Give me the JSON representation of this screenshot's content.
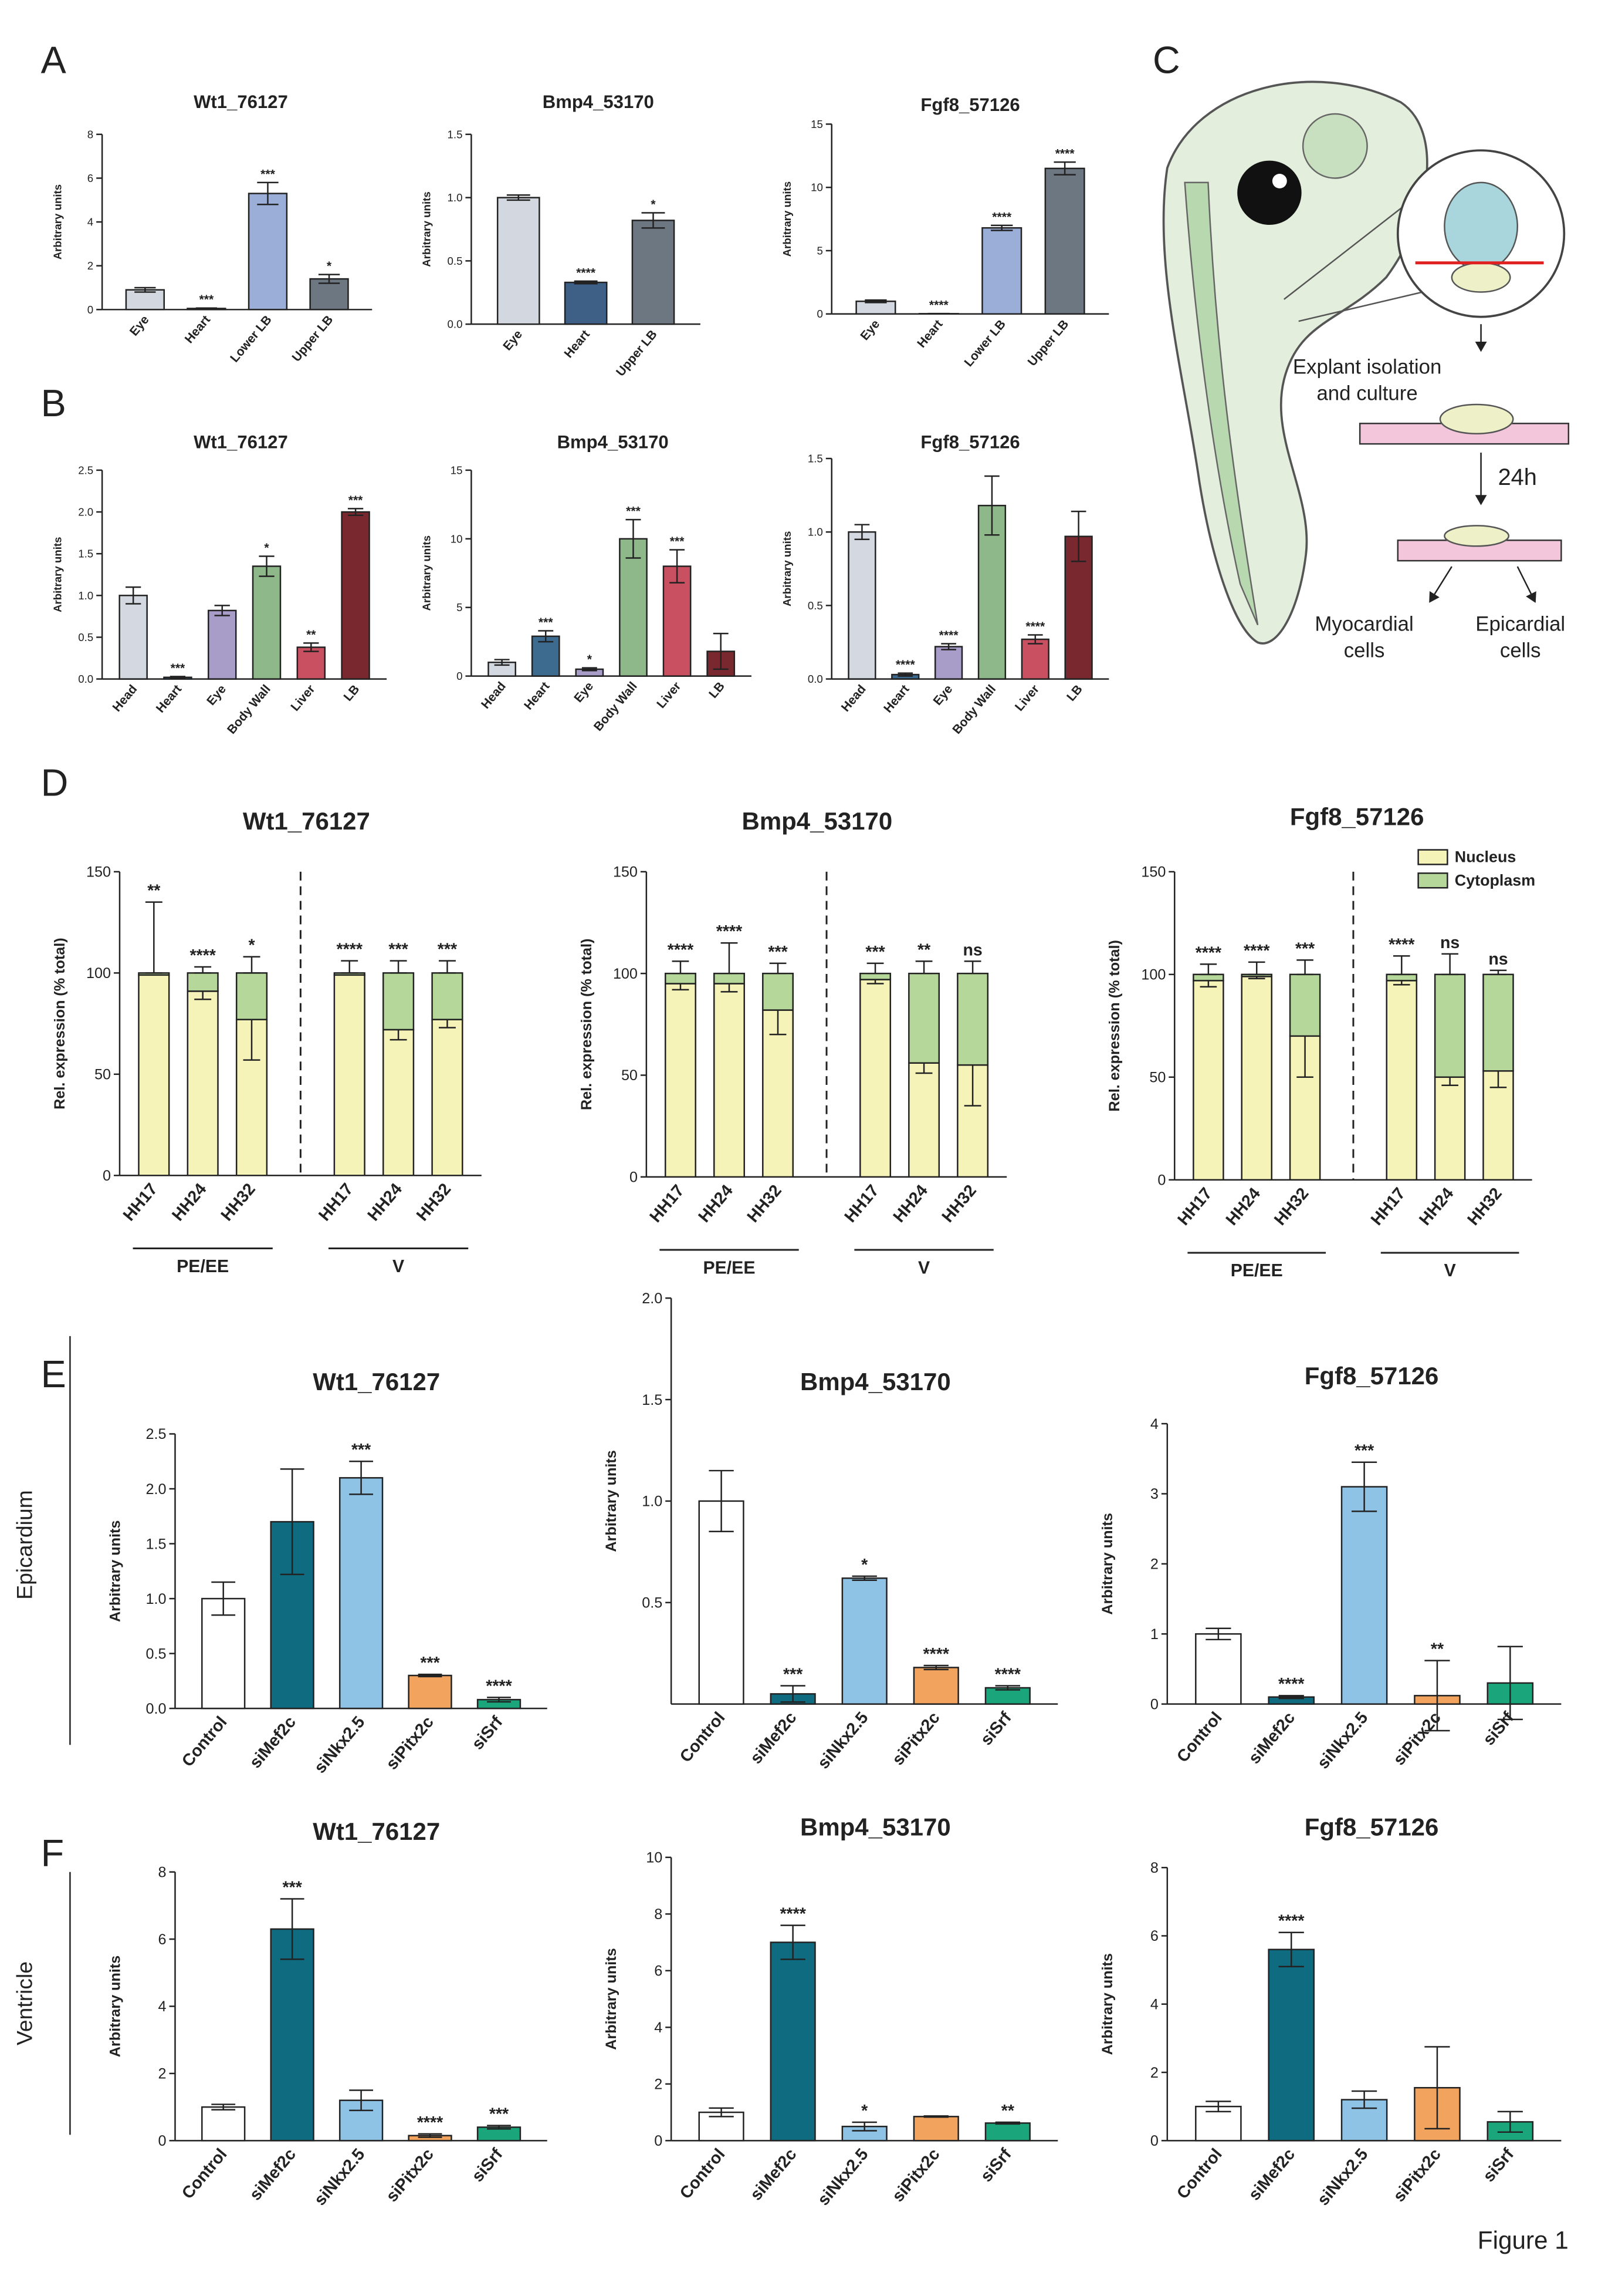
{
  "panel_labels": [
    "A",
    "B",
    "C",
    "D",
    "E",
    "F"
  ],
  "side_labels": [
    "Epicardium",
    "Ventricle"
  ],
  "figure_label": "Figure 1",
  "diagram": {
    "labels": [
      "Explant isolation",
      "and culture",
      "24h",
      "Myocardial",
      "cells",
      "Epicardial",
      "cells"
    ]
  },
  "chart_data": [
    {
      "type": "bar",
      "title": "Wt1_76127",
      "ylabel": "Arbitrary units",
      "categories": [
        "Eye",
        "Heart",
        "Lower LB",
        "Upper LB"
      ],
      "values": [
        0.9,
        0.05,
        5.3,
        1.4
      ],
      "errors": [
        0.1,
        0.02,
        0.5,
        0.2
      ],
      "annotations": [
        null,
        "***",
        "***",
        "*"
      ],
      "colors": [
        "#d3d8e0",
        "#3e5f86",
        "#9aaed8",
        "#6d7782"
      ],
      "ylim": [
        0,
        8
      ],
      "yticks": [
        0,
        2,
        4,
        6,
        8
      ]
    },
    {
      "type": "bar",
      "title": "Bmp4_53170",
      "ylabel": "Arbitrary units",
      "categories": [
        "Eye",
        "Heart",
        "Upper LB"
      ],
      "values": [
        1.0,
        0.33,
        0.82
      ],
      "errors": [
        0.02,
        0.01,
        0.06
      ],
      "annotations": [
        null,
        "****",
        "*"
      ],
      "colors": [
        "#d3d8e0",
        "#3e5f86",
        "#6d7782"
      ],
      "ylim": [
        0,
        1.5
      ],
      "yticks": [
        {
          "value": 0,
          "label": "0.0"
        },
        0.5,
        {
          "value": 1,
          "label": "1.0"
        },
        1.5
      ]
    },
    {
      "type": "bar",
      "title": "Fgf8_57126",
      "ylabel": "Arbitrary units",
      "categories": [
        "Eye",
        "Heart",
        "Lower LB",
        "Upper LB"
      ],
      "values": [
        1.0,
        0.02,
        6.8,
        11.5
      ],
      "errors": [
        0.1,
        0.01,
        0.2,
        0.5
      ],
      "annotations": [
        null,
        "****",
        "****",
        "****"
      ],
      "colors": [
        "#d3d8e0",
        "#3e5f86",
        "#9aaed8",
        "#6d7782"
      ],
      "ylim": [
        0,
        15
      ],
      "yticks": [
        0,
        5,
        10,
        15
      ]
    },
    {
      "type": "bar",
      "title": "Wt1_76127",
      "ylabel": "Arbitrary units",
      "categories": [
        "Head",
        "Heart",
        "Eye",
        "Body Wall",
        "Liver",
        "LB"
      ],
      "values": [
        1.0,
        0.02,
        0.82,
        1.35,
        0.38,
        2.0
      ],
      "errors": [
        0.1,
        0.01,
        0.06,
        0.12,
        0.05,
        0.04
      ],
      "annotations": [
        null,
        "***",
        null,
        "*",
        "**",
        "***"
      ],
      "colors": [
        "#d4d8e0",
        "#3d6a8f",
        "#a89cc8",
        "#8fb88a",
        "#c85060",
        "#7a2830"
      ],
      "ylim": [
        0,
        2.5
      ],
      "yticks": [
        {
          "value": 0,
          "label": "0.0"
        },
        0.5,
        {
          "value": 1,
          "label": "1.0"
        },
        1.5,
        {
          "value": 2,
          "label": "2.0"
        },
        2.5
      ]
    },
    {
      "type": "bar",
      "title": "Bmp4_53170",
      "ylabel": "Arbitrary units",
      "categories": [
        "Head",
        "Heart",
        "Eye",
        "Body Wall",
        "Liver",
        "LB"
      ],
      "values": [
        1.0,
        2.9,
        0.5,
        10,
        8,
        1.8
      ],
      "errors": [
        0.2,
        0.4,
        0.1,
        1.4,
        1.2,
        1.3
      ],
      "annotations": [
        null,
        "***",
        "*",
        "***",
        "***",
        null
      ],
      "colors": [
        "#d4d8e0",
        "#3d6a8f",
        "#a89cc8",
        "#8fb88a",
        "#c85060",
        "#7a2830"
      ],
      "ylim": [
        0,
        15
      ],
      "yticks": [
        0,
        5,
        10,
        15
      ]
    },
    {
      "type": "bar",
      "title": "Fgf8_57126",
      "ylabel": "Arbitrary units",
      "categories": [
        "Head",
        "Heart",
        "Eye",
        "Body Wall",
        "Liver",
        "LB"
      ],
      "values": [
        1.0,
        0.03,
        0.22,
        1.18,
        0.27,
        0.97
      ],
      "errors": [
        0.05,
        0.01,
        0.02,
        0.2,
        0.03,
        0.17
      ],
      "annotations": [
        null,
        "****",
        "****",
        null,
        "****",
        null
      ],
      "colors": [
        "#d4d8e0",
        "#3d6a8f",
        "#a89cc8",
        "#8fb88a",
        "#c85060",
        "#7a2830"
      ],
      "ylim": [
        0,
        1.5
      ],
      "yticks": [
        {
          "value": 0,
          "label": "0.0"
        },
        0.5,
        {
          "value": 1,
          "label": "1.0"
        },
        1.5
      ]
    },
    {
      "type": "stacked_bar",
      "title": "Wt1_76127",
      "ylabel": "Rel. expression (% total)",
      "categories": [
        "HH17",
        "HH24",
        "HH32",
        "HH17",
        "HH24",
        "HH32"
      ],
      "group_labels": [
        "PE/EE",
        "V"
      ],
      "series": [
        {
          "name": "Nucleus",
          "color": "#f6f3b8",
          "values": [
            99,
            91,
            77,
            99,
            72,
            77
          ],
          "errors": [
            0,
            4,
            20,
            0,
            5,
            4
          ]
        },
        {
          "name": "Cytoplasm",
          "color": "#b5d89a",
          "values": [
            1,
            9,
            23,
            1,
            28,
            23
          ],
          "errors": [
            35,
            3,
            8,
            6,
            6,
            6
          ]
        }
      ],
      "annotations": [
        "**",
        "****",
        "*",
        "****",
        "***",
        "***"
      ],
      "ylim": [
        0,
        150
      ],
      "yticks": [
        0,
        50,
        100,
        150
      ]
    },
    {
      "type": "stacked_bar",
      "title": "Bmp4_53170",
      "ylabel": "Rel. expression (% total)",
      "categories": [
        "HH17",
        "HH24",
        "HH32",
        "HH17",
        "HH24",
        "HH32"
      ],
      "group_labels": [
        "PE/EE",
        "V"
      ],
      "series": [
        {
          "name": "Nucleus",
          "color": "#f6f3b8",
          "values": [
            95,
            95,
            82,
            97,
            56,
            55
          ],
          "errors": [
            3,
            4,
            12,
            2,
            5,
            20
          ]
        },
        {
          "name": "Cytoplasm",
          "color": "#b5d89a",
          "values": [
            5,
            5,
            18,
            3,
            44,
            45
          ],
          "errors": [
            6,
            15,
            5,
            5,
            6,
            6
          ]
        }
      ],
      "annotations": [
        "****",
        "****",
        "***",
        "***",
        "**",
        "ns"
      ],
      "ylim": [
        0,
        150
      ],
      "yticks": [
        0,
        50,
        100,
        150
      ]
    },
    {
      "type": "stacked_bar",
      "title": "Fgf8_57126",
      "ylabel": "Rel. expression (% total)",
      "categories": [
        "HH17",
        "HH24",
        "HH32",
        "HH17",
        "HH24",
        "HH32"
      ],
      "group_labels": [
        "PE/EE",
        "V"
      ],
      "series": [
        {
          "name": "Nucleus",
          "color": "#f6f3b8",
          "values": [
            97,
            99,
            70,
            97,
            50,
            53
          ],
          "errors": [
            3,
            1,
            20,
            2,
            4,
            8
          ]
        },
        {
          "name": "Cytoplasm",
          "color": "#b5d89a",
          "values": [
            3,
            1,
            30,
            3,
            50,
            47
          ],
          "errors": [
            5,
            6,
            7,
            9,
            10,
            2
          ]
        }
      ],
      "annotations": [
        "****",
        "****",
        "***",
        "****",
        "ns",
        "ns"
      ],
      "legend": "upper right",
      "ylim": [
        0,
        150
      ],
      "yticks": [
        0,
        50,
        100,
        150
      ]
    },
    {
      "type": "bar",
      "title": "Wt1_76127",
      "ylabel": "Arbitrary units",
      "categories": [
        "Control",
        "siMef2c",
        "siNkx2.5",
        "siPitx2c",
        "siSrf"
      ],
      "values": [
        1.0,
        1.7,
        2.1,
        0.3,
        0.08
      ],
      "errors": [
        0.15,
        0.48,
        0.15,
        0.01,
        0.02
      ],
      "annotations": [
        null,
        null,
        "***",
        "***",
        "****"
      ],
      "colors": [
        "#ffffff",
        "#0e6b80",
        "#8ec3e6",
        "#f2a35e",
        "#1aa57a"
      ],
      "ylim": [
        0,
        2.5
      ],
      "yticks": [
        {
          "value": 0,
          "label": "0.0"
        },
        0.5,
        {
          "value": 1,
          "label": "1.0"
        },
        1.5,
        {
          "value": 2,
          "label": "2.0"
        },
        2.5
      ]
    },
    {
      "type": "bar",
      "title": "Bmp4_53170",
      "ylabel": "Arbitrary units",
      "categories": [
        "Control",
        "siMef2c",
        "siNkx2.5",
        "siPitx2c",
        "siSrf"
      ],
      "values": [
        1.0,
        0.05,
        0.62,
        0.18,
        0.08
      ],
      "errors": [
        0.15,
        0.04,
        0.01,
        0.01,
        0.01
      ],
      "annotations": [
        null,
        "***",
        "*",
        "****",
        "****"
      ],
      "colors": [
        "#ffffff",
        "#0e6b80",
        "#8ec3e6",
        "#f2a35e",
        "#1aa57a"
      ],
      "ylim": [
        0,
        2
      ],
      "yticks": [
        0.5,
        {
          "value": 1,
          "label": "1.0"
        },
        1.5,
        {
          "value": 2,
          "label": "2.0"
        }
      ]
    },
    {
      "type": "bar",
      "title": "Fgf8_57126",
      "ylabel": "Arbitrary units",
      "categories": [
        "Control",
        "siMef2c",
        "siNkx2.5",
        "siPitx2c",
        "siSrf"
      ],
      "values": [
        1.0,
        0.1,
        3.1,
        0.12,
        0.3
      ],
      "errors": [
        0.08,
        0.02,
        0.35,
        0.5,
        0.52
      ],
      "annotations": [
        null,
        "****",
        "***",
        "**",
        null
      ],
      "colors": [
        "#ffffff",
        "#0e6b80",
        "#8ec3e6",
        "#f2a35e",
        "#1aa57a"
      ],
      "ylim": [
        0,
        4
      ],
      "yticks": [
        0,
        1,
        2,
        3,
        4
      ]
    },
    {
      "type": "bar",
      "title": "Wt1_76127",
      "ylabel": "Arbitrary units",
      "categories": [
        "Control",
        "siMef2c",
        "siNkx2.5",
        "siPitx2c",
        "siSrf"
      ],
      "values": [
        1.0,
        6.3,
        1.2,
        0.15,
        0.4
      ],
      "errors": [
        0.08,
        0.9,
        0.3,
        0.05,
        0.05
      ],
      "annotations": [
        null,
        "***",
        null,
        "****",
        "***"
      ],
      "colors": [
        "#ffffff",
        "#0e6b80",
        "#8ec3e6",
        "#f2a35e",
        "#1aa57a"
      ],
      "ylim": [
        0,
        8
      ],
      "yticks": [
        0,
        2,
        4,
        6,
        8
      ]
    },
    {
      "type": "bar",
      "title": "Bmp4_53170",
      "ylabel": "Arbitrary units",
      "categories": [
        "Control",
        "siMef2c",
        "siNkx2.5",
        "siPitx2c",
        "siSrf"
      ],
      "values": [
        1.0,
        7.0,
        0.5,
        0.85,
        0.62
      ],
      "errors": [
        0.15,
        0.6,
        0.15,
        0.02,
        0.03
      ],
      "annotations": [
        null,
        "****",
        "*",
        null,
        "**"
      ],
      "colors": [
        "#ffffff",
        "#0e6b80",
        "#8ec3e6",
        "#f2a35e",
        "#1aa57a"
      ],
      "ylim": [
        0,
        10
      ],
      "yticks": [
        0,
        2,
        4,
        6,
        8,
        10
      ]
    },
    {
      "type": "bar",
      "title": "Fgf8_57126",
      "ylabel": "Arbitrary units",
      "categories": [
        "Control",
        "siMef2c",
        "siNkx2.5",
        "siPitx2c",
        "siSrf"
      ],
      "values": [
        1.0,
        5.6,
        1.2,
        1.55,
        0.55
      ],
      "errors": [
        0.15,
        0.5,
        0.25,
        1.2,
        0.3
      ],
      "annotations": [
        null,
        "****",
        null,
        null,
        null
      ],
      "colors": [
        "#ffffff",
        "#0e6b80",
        "#8ec3e6",
        "#f2a35e",
        "#1aa57a"
      ],
      "ylim": [
        0,
        8
      ],
      "yticks": [
        0,
        2,
        4,
        6,
        8
      ]
    }
  ]
}
